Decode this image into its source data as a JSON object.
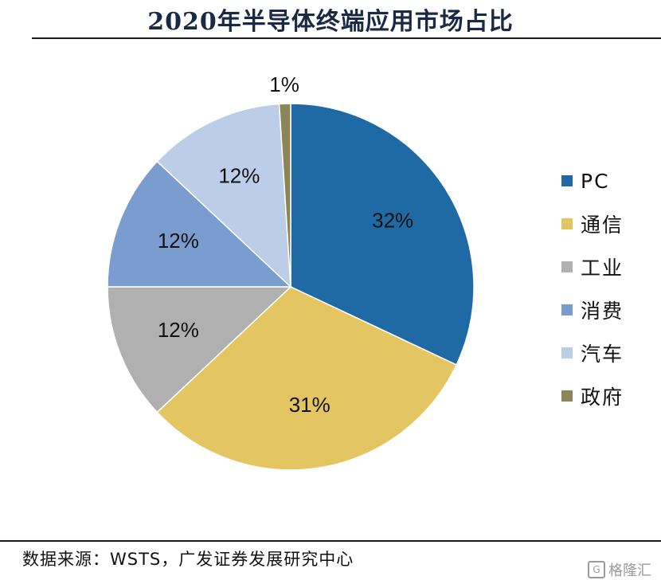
{
  "chart_data": {
    "type": "pie",
    "title": "2020年半导体终端应用市场占比",
    "categories": [
      "PC",
      "通信",
      "工业",
      "消费",
      "汽车",
      "政府"
    ],
    "values": [
      32,
      31,
      12,
      12,
      12,
      1
    ],
    "data_labels": [
      "32%",
      "31%",
      "12%",
      "12%",
      "12%",
      "1%"
    ],
    "colors": [
      "#1f6aa5",
      "#e3c662",
      "#b0b0b0",
      "#7b9ccf",
      "#bccde8",
      "#8c8558"
    ],
    "start_angle_deg": 0,
    "direction": "clockwise",
    "legend_position": "right"
  },
  "source": "数据来源：WSTS，广发证券发展研究中心",
  "watermark": "格隆汇"
}
